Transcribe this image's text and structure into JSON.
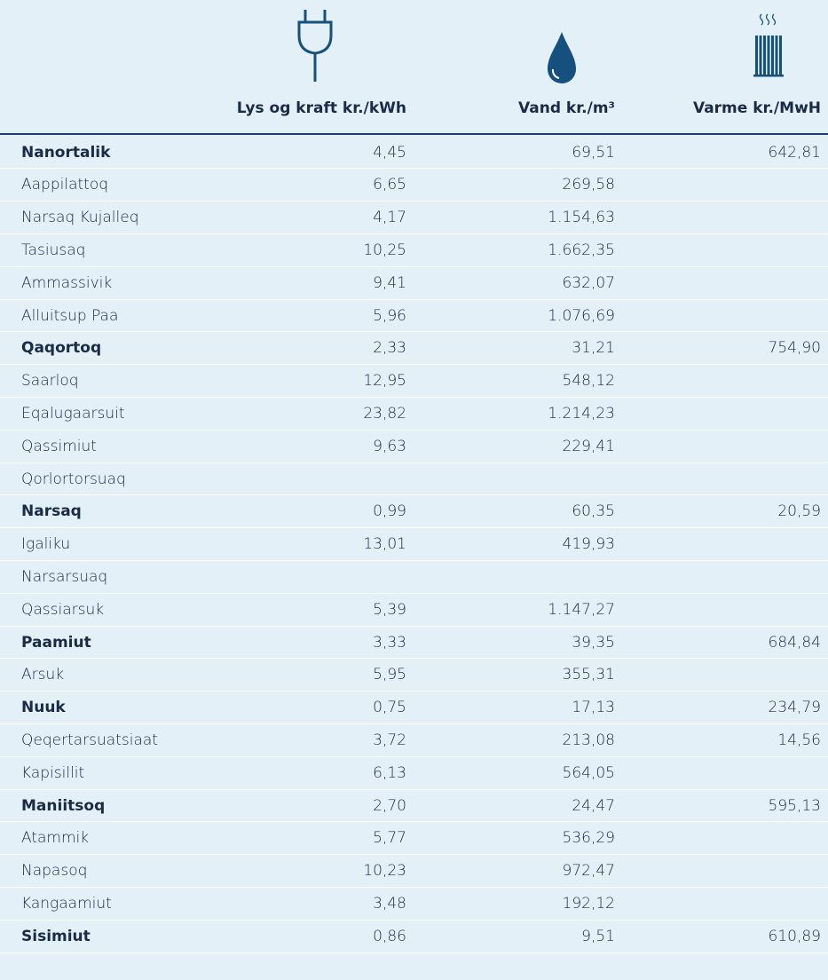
{
  "table": {
    "headers": [
      "Lys og kraft kr./kWh",
      "Vand kr./m³",
      "Varme kr./MwH"
    ],
    "rows": [
      {
        "cells": [
          "Nanortalik",
          "4,45",
          "69,51",
          "642,81"
        ],
        "bold": true
      },
      {
        "cells": [
          "Aappilattoq",
          "6,65",
          "269,58",
          null
        ],
        "bold": false
      },
      {
        "cells": [
          "Narsaq Kujalleq",
          "4,17",
          "1.154,63",
          null
        ],
        "bold": false
      },
      {
        "cells": [
          "Tasiusaq",
          "10,25",
          "1.662,35",
          null
        ],
        "bold": false
      },
      {
        "cells": [
          "Ammassivik",
          "9,41",
          "632,07",
          null
        ],
        "bold": false
      },
      {
        "cells": [
          "Alluitsup Paa",
          "5,96",
          "1.076,69",
          null
        ],
        "bold": false
      },
      {
        "cells": [
          "Qaqortoq",
          "2,33",
          "31,21",
          "754,90"
        ],
        "bold": true
      },
      {
        "cells": [
          "Saarloq",
          "12,95",
          "548,12",
          null
        ],
        "bold": false
      },
      {
        "cells": [
          "Eqalugaarsuit",
          "23,82",
          "1.214,23",
          null
        ],
        "bold": false
      },
      {
        "cells": [
          "Qassimiut",
          "9,63",
          "229,41",
          null
        ],
        "bold": false
      },
      {
        "cells": [
          "Qorlortorsuaq",
          null,
          null,
          null
        ],
        "bold": false
      },
      {
        "cells": [
          "Narsaq",
          "0,99",
          "60,35",
          "20,59"
        ],
        "bold": true
      },
      {
        "cells": [
          "Igaliku",
          "13,01",
          "419,93",
          null
        ],
        "bold": false
      },
      {
        "cells": [
          "Narsarsuaq",
          null,
          null,
          null
        ],
        "bold": false
      },
      {
        "cells": [
          "Qassiarsuk",
          "5,39",
          "1.147,27",
          null
        ],
        "bold": false
      },
      {
        "cells": [
          "Paamiut",
          "3,33",
          "39,35",
          "684,84"
        ],
        "bold": true
      },
      {
        "cells": [
          "Arsuk",
          "5,95",
          "355,31",
          null
        ],
        "bold": false
      },
      {
        "cells": [
          "Nuuk",
          "0,75",
          "17,13",
          "234,79"
        ],
        "bold": true
      },
      {
        "cells": [
          "Qeqertarsuatsiaat",
          "3,72",
          "213,08",
          "14,56"
        ],
        "bold": false
      },
      {
        "cells": [
          "Kapisillit",
          "6,13",
          "564,05",
          null
        ],
        "bold": false
      },
      {
        "cells": [
          "Maniitsoq",
          "2,70",
          "24,47",
          "595,13"
        ],
        "bold": true
      },
      {
        "cells": [
          "Atammik",
          "5,77",
          "536,29",
          null
        ],
        "bold": false
      },
      {
        "cells": [
          "Napasoq",
          "10,23",
          "972,47",
          null
        ],
        "bold": false
      },
      {
        "cells": [
          "Kangaamiut",
          "3,48",
          "192,12",
          null
        ],
        "bold": false
      },
      {
        "cells": [
          "Sisimiut",
          "0,86",
          "9,51",
          "610,89"
        ],
        "bold": true
      }
    ]
  }
}
